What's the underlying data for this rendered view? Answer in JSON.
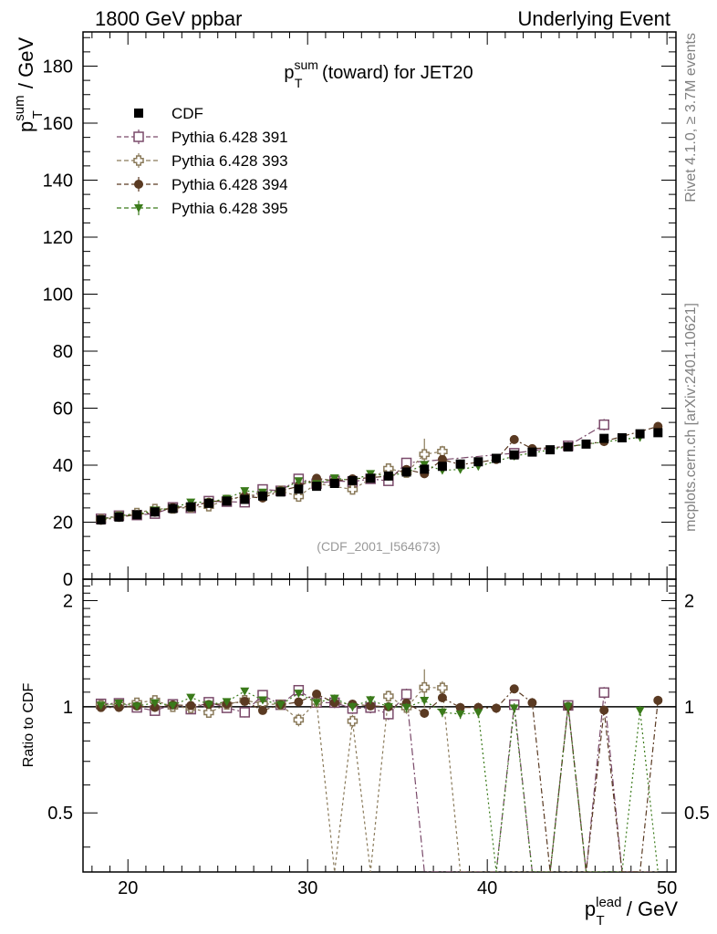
{
  "header": {
    "left": "1800 GeV ppbar",
    "right": "Underlying Event"
  },
  "side": {
    "rivet": "Rivet 4.1.0, ≥ 3.7M events",
    "mcplots": "mcplots.cern.ch [arXiv:2401.10621]"
  },
  "chart_data": {
    "type": "scatter",
    "title_main": "p",
    "title_sup": "sum",
    "title_sub": "T",
    "title_rest": " (toward) for JET20",
    "watermark": "(CDF_2001_I564673)",
    "ylabel_main": "p",
    "ylabel_sup": "sum",
    "ylabel_sub": "T",
    "ylabel_rest": " / GeV",
    "xlabel_main": "p",
    "xlabel_sup": "lead",
    "xlabel_sub": "T",
    "xlabel_rest": " / GeV",
    "ratio_ylabel": "Ratio to CDF",
    "xlim": [
      17.5,
      50.5
    ],
    "ylim": [
      0,
      192
    ],
    "ratio_ylim": [
      0.34,
      2.3
    ],
    "x_ticks": [
      20,
      30,
      40,
      50
    ],
    "x_tick_labels": [
      "20",
      "30",
      "40",
      "50"
    ],
    "y_ticks": [
      0,
      20,
      40,
      60,
      80,
      100,
      120,
      140,
      160,
      180
    ],
    "y_tick_labels": [
      "0",
      "20",
      "40",
      "60",
      "80",
      "100",
      "120",
      "140",
      "160",
      "180"
    ],
    "ratio_ticks": [
      0.5,
      1,
      2
    ],
    "ratio_tick_labels": [
      "0.5",
      "1",
      "2"
    ],
    "legend": [
      {
        "label": "CDF",
        "marker": "square-filled",
        "color": "#000000"
      },
      {
        "label": "Pythia 6.428 391",
        "marker": "square-open",
        "color": "#7a4a6a"
      },
      {
        "label": "Pythia 6.428 393",
        "marker": "cross-open",
        "color": "#8a7a5a"
      },
      {
        "label": "Pythia 6.428 394",
        "marker": "circle-filled",
        "color": "#5a3a22"
      },
      {
        "label": "Pythia 6.428 395",
        "marker": "triangle-filled",
        "color": "#3a7a1a"
      }
    ],
    "series": [
      {
        "name": "CDF",
        "x": [
          18.5,
          19.5,
          20.5,
          21.5,
          22.5,
          23.5,
          24.5,
          25.5,
          26.5,
          27.5,
          28.5,
          29.5,
          30.5,
          31.5,
          32.5,
          33.5,
          34.5,
          35.5,
          36.5,
          37.5,
          38.5,
          39.5,
          40.5,
          41.5,
          42.5,
          43.5,
          44.5,
          45.5,
          46.5,
          47.5,
          48.5,
          49.5
        ],
        "y": [
          20.8,
          21.8,
          22.6,
          23.6,
          24.8,
          25.4,
          26.6,
          27.4,
          28.0,
          29.2,
          30.6,
          31.6,
          32.6,
          33.6,
          34.6,
          35.4,
          36.2,
          37.6,
          38.6,
          39.6,
          40.4,
          41.2,
          42.4,
          43.6,
          44.6,
          45.4,
          46.4,
          47.4,
          49.4,
          49.6,
          51.0,
          51.4
        ],
        "err": [
          0.6,
          0.6,
          0.6,
          0.6,
          0.6,
          0.6,
          0.6,
          0.6,
          0.6,
          0.6,
          0.6,
          0.6,
          0.6,
          0.6,
          0.6,
          0.6,
          0.6,
          0.6,
          0.6,
          0.6,
          0.6,
          0.6,
          0.6,
          0.6,
          0.6,
          0.6,
          0.6,
          0.6,
          0.6,
          0.6,
          0.6,
          0.6
        ]
      },
      {
        "name": "Pythia 6.428 391",
        "x": [
          18.5,
          19.5,
          20.5,
          21.5,
          22.5,
          23.5,
          24.5,
          25.5,
          26.5,
          27.5,
          28.5,
          29.5,
          30.5,
          31.5,
          32.5,
          33.5,
          34.5,
          35.5,
          36.5,
          37.5,
          38.5,
          39.5,
          40.5,
          41.5,
          42.5,
          43.5,
          44.5,
          45.5,
          46.5,
          47.5,
          48.5,
          49.5
        ],
        "y": [
          21.2,
          22.3,
          22.5,
          23.0,
          25.2,
          25.0,
          27.4,
          27.2,
          27.0,
          31.5,
          31.0,
          35.2,
          33.5,
          34.5,
          34.2,
          35.2,
          34.5,
          40.8,
          0,
          0,
          0,
          0,
          0,
          44.2,
          0,
          0,
          46.8,
          0,
          54.2,
          0,
          0,
          0
        ],
        "err": [
          0.5,
          0.5,
          0.5,
          0.6,
          0.6,
          0.7,
          0.8,
          0.8,
          0.9,
          1.0,
          1.0,
          1.2,
          1.2,
          1.2,
          1.2,
          1.3,
          1.3,
          1.5,
          0,
          0,
          0,
          0,
          0,
          1.5,
          0,
          0,
          1.5,
          0,
          2,
          0,
          0,
          0
        ]
      },
      {
        "name": "Pythia 6.428 393",
        "x": [
          18.5,
          19.5,
          20.5,
          21.5,
          22.5,
          23.5,
          24.5,
          25.5,
          26.5,
          27.5,
          28.5,
          29.5,
          30.5,
          31.5,
          32.5,
          33.5,
          34.5,
          35.5,
          36.5,
          37.5,
          38.5,
          39.5,
          40.5,
          41.5,
          42.5,
          43.5,
          44.5,
          45.5,
          46.5,
          47.5,
          48.5,
          49.5
        ],
        "y": [
          21.0,
          22.1,
          23.2,
          24.6,
          24.8,
          25.2,
          25.6,
          27.8,
          29.2,
          29.8,
          31.0,
          29.0,
          33.6,
          0,
          31.5,
          0,
          38.8,
          37.4,
          43.8,
          44.8,
          0,
          0,
          0,
          0,
          0,
          0,
          0,
          0,
          0,
          0,
          0,
          0
        ],
        "err": [
          0.5,
          0.5,
          0.6,
          0.6,
          0.7,
          0.7,
          0.8,
          0.8,
          0.9,
          1.0,
          1.0,
          1.2,
          1.2,
          0,
          1.3,
          0,
          1.4,
          1.5,
          5.5,
          2.0,
          0,
          0,
          0,
          0,
          0,
          0,
          0,
          0,
          0,
          0,
          0,
          0
        ]
      },
      {
        "name": "Pythia 6.428 394",
        "x": [
          18.5,
          19.5,
          20.5,
          21.5,
          22.5,
          23.5,
          24.5,
          25.5,
          26.5,
          27.5,
          28.5,
          29.5,
          30.5,
          31.5,
          32.5,
          33.5,
          34.5,
          35.5,
          36.5,
          37.5,
          38.5,
          39.5,
          40.5,
          41.5,
          42.5,
          43.5,
          44.5,
          45.5,
          46.5,
          47.5,
          48.5,
          49.5
        ],
        "y": [
          20.7,
          21.7,
          22.7,
          23.5,
          25.1,
          25.6,
          27.0,
          27.9,
          29.0,
          28.5,
          31.0,
          32.6,
          35.4,
          34.5,
          35.2,
          35.6,
          36.2,
          38.5,
          37.0,
          42.0,
          40.2,
          41.0,
          42.0,
          49.0,
          45.8,
          0,
          46.5,
          0,
          48.3,
          0,
          0,
          53.6
        ],
        "err": [
          0.4,
          0.4,
          0.4,
          0.5,
          0.5,
          0.5,
          0.6,
          0.6,
          0.7,
          0.7,
          0.8,
          0.8,
          0.9,
          0.9,
          1.0,
          1.0,
          1.0,
          1.1,
          1.1,
          1.2,
          1.2,
          1.3,
          1.3,
          1.4,
          1.4,
          0,
          1.4,
          0,
          1.5,
          0,
          0,
          1.6
        ]
      },
      {
        "name": "Pythia 6.428 395",
        "x": [
          18.5,
          19.5,
          20.5,
          21.5,
          22.5,
          23.5,
          24.5,
          25.5,
          26.5,
          27.5,
          28.5,
          29.5,
          30.5,
          31.5,
          32.5,
          33.5,
          34.5,
          35.5,
          36.5,
          37.5,
          38.5,
          39.5,
          40.5,
          41.5,
          42.5,
          43.5,
          44.5,
          45.5,
          46.5,
          47.5,
          48.5,
          49.5
        ],
        "y": [
          21.0,
          22.3,
          22.7,
          24.2,
          25.0,
          27.0,
          27.0,
          28.3,
          31.0,
          30.5,
          31.0,
          34.5,
          33.5,
          35.5,
          34.6,
          37.0,
          36.2,
          37.4,
          40.2,
          38.2,
          38.5,
          39.6,
          0,
          43.2,
          0,
          0,
          46.5,
          0,
          0,
          0,
          49.8,
          0
        ],
        "err": [
          0.4,
          0.4,
          0.4,
          0.5,
          0.5,
          0.5,
          0.6,
          0.6,
          0.7,
          0.7,
          0.8,
          0.8,
          0.9,
          0.9,
          1.0,
          1.0,
          1.0,
          1.1,
          1.1,
          1.2,
          1.2,
          1.3,
          0,
          1.4,
          0,
          0,
          1.4,
          0,
          0,
          0,
          1.5,
          0
        ]
      }
    ]
  }
}
